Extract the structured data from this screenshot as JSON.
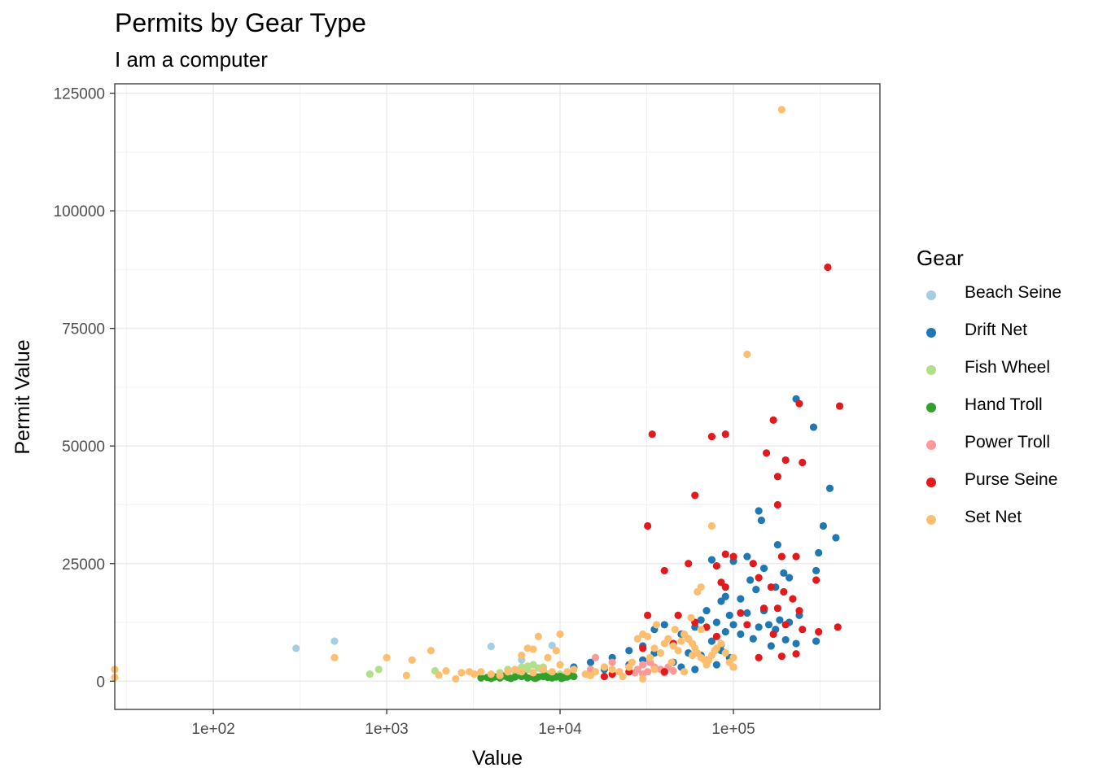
{
  "chart_data": {
    "type": "scatter",
    "title": "Permits by Gear Type",
    "subtitle": "I am a computer",
    "xlabel": "Value",
    "ylabel": "Permit Value",
    "x_scale": "log10",
    "xlim": [
      27,
      700000
    ],
    "ylim": [
      -6000,
      127000
    ],
    "x_ticks": [
      100,
      1000,
      10000,
      100000
    ],
    "x_tick_labels": [
      "1e+02",
      "1e+03",
      "1e+04",
      "1e+05"
    ],
    "y_ticks": [
      0,
      25000,
      50000,
      75000,
      100000,
      125000
    ],
    "y_tick_labels": [
      "0",
      "25000",
      "50000",
      "75000",
      "100000",
      "125000"
    ],
    "grid": true,
    "legend_title": "Gear",
    "legend_position": "right",
    "series": [
      {
        "name": "Beach Seine",
        "color": "#a6cee3",
        "points": [
          [
            300,
            7000
          ],
          [
            500,
            8500
          ],
          [
            4000,
            7400
          ],
          [
            9000,
            7600
          ],
          [
            6000,
            4500
          ],
          [
            7000,
            3500
          ]
        ]
      },
      {
        "name": "Drift Net",
        "color": "#1f78b4",
        "points": [
          [
            230000,
            60000
          ],
          [
            290000,
            54000
          ],
          [
            360000,
            41000
          ],
          [
            330000,
            33000
          ],
          [
            390000,
            30500
          ],
          [
            180000,
            29000
          ],
          [
            310000,
            27300
          ],
          [
            120000,
            26500
          ],
          [
            140000,
            36200
          ],
          [
            145000,
            34200
          ],
          [
            75000,
            25800
          ],
          [
            100000,
            25500
          ],
          [
            150000,
            24000
          ],
          [
            195000,
            23000
          ],
          [
            210000,
            22000
          ],
          [
            300000,
            23500
          ],
          [
            125000,
            21500
          ],
          [
            175000,
            20000
          ],
          [
            135000,
            19500
          ],
          [
            90000,
            18000
          ],
          [
            110000,
            17500
          ],
          [
            85000,
            17000
          ],
          [
            70000,
            15000
          ],
          [
            95000,
            14000
          ],
          [
            120000,
            14500
          ],
          [
            150000,
            15000
          ],
          [
            185000,
            13000
          ],
          [
            160000,
            12000
          ],
          [
            210000,
            12500
          ],
          [
            240000,
            14000
          ],
          [
            65000,
            13000
          ],
          [
            80000,
            12500
          ],
          [
            100000,
            12000
          ],
          [
            140000,
            11500
          ],
          [
            175000,
            11000
          ],
          [
            60000,
            11500
          ],
          [
            90000,
            10500
          ],
          [
            110000,
            10000
          ],
          [
            130000,
            9000
          ],
          [
            200000,
            8800
          ],
          [
            300000,
            8500
          ],
          [
            230000,
            8000
          ],
          [
            165000,
            7500
          ],
          [
            40000,
            12000
          ],
          [
            35000,
            11000
          ],
          [
            50000,
            10000
          ],
          [
            55000,
            9000
          ],
          [
            75000,
            8500
          ],
          [
            85000,
            7800
          ],
          [
            45000,
            8000
          ],
          [
            30000,
            7500
          ],
          [
            25000,
            6500
          ],
          [
            35000,
            6000
          ],
          [
            55000,
            6000
          ],
          [
            65000,
            5500
          ],
          [
            20000,
            5000
          ],
          [
            30000,
            4500
          ],
          [
            45000,
            4000
          ],
          [
            15000,
            4000
          ],
          [
            25000,
            3500
          ],
          [
            50000,
            3000
          ],
          [
            60000,
            2500
          ],
          [
            70000,
            4500
          ],
          [
            12000,
            3000
          ],
          [
            18000,
            2500
          ],
          [
            40000,
            2000
          ],
          [
            85000,
            6500
          ],
          [
            95000,
            5000
          ],
          [
            80000,
            3500
          ]
        ]
      },
      {
        "name": "Fish Wheel",
        "color": "#b2df8a",
        "points": [
          [
            800,
            1500
          ],
          [
            900,
            2500
          ],
          [
            1900,
            2200
          ],
          [
            4000,
            1300
          ],
          [
            4500,
            1800
          ],
          [
            5000,
            2500
          ],
          [
            5500,
            2000
          ],
          [
            6000,
            3000
          ],
          [
            6500,
            2500
          ],
          [
            7000,
            3500
          ],
          [
            7500,
            2800
          ],
          [
            8000,
            2000
          ],
          [
            8500,
            1500
          ],
          [
            9000,
            1000
          ],
          [
            6000,
            1200
          ],
          [
            5000,
            1000
          ],
          [
            10000,
            1500
          ],
          [
            7000,
            1800
          ],
          [
            6500,
            3200
          ],
          [
            8000,
            3000
          ]
        ]
      },
      {
        "name": "Hand Troll",
        "color": "#33a02c",
        "points": [
          [
            3500,
            700
          ],
          [
            3800,
            800
          ],
          [
            4000,
            600
          ],
          [
            4200,
            900
          ],
          [
            4500,
            700
          ],
          [
            5000,
            800
          ],
          [
            5500,
            900
          ],
          [
            6000,
            1000
          ],
          [
            6500,
            700
          ],
          [
            7000,
            800
          ],
          [
            7500,
            900
          ],
          [
            8000,
            1000
          ],
          [
            8500,
            800
          ],
          [
            9000,
            700
          ],
          [
            9500,
            900
          ],
          [
            10000,
            1000
          ],
          [
            10500,
            800
          ],
          [
            11000,
            900
          ],
          [
            12000,
            1000
          ],
          [
            4800,
            1100
          ],
          [
            5200,
            600
          ],
          [
            6200,
            1200
          ],
          [
            7200,
            600
          ],
          [
            8200,
            1100
          ],
          [
            9200,
            1200
          ],
          [
            10200,
            600
          ],
          [
            11500,
            1200
          ]
        ]
      },
      {
        "name": "Power Troll",
        "color": "#fb9a99",
        "points": [
          [
            15000,
            2500
          ],
          [
            16000,
            5000
          ],
          [
            18000,
            3000
          ],
          [
            20000,
            4000
          ],
          [
            22000,
            2000
          ],
          [
            25000,
            3000
          ],
          [
            28000,
            2500
          ],
          [
            30000,
            3500
          ],
          [
            32000,
            2000
          ],
          [
            35000,
            3000
          ],
          [
            38000,
            2500
          ],
          [
            40000,
            1800
          ],
          [
            42000,
            3000
          ],
          [
            45000,
            2200
          ],
          [
            30000,
            1500
          ],
          [
            27000,
            1800
          ],
          [
            33000,
            4000
          ]
        ]
      },
      {
        "name": "Purse Seine",
        "color": "#e31a1c",
        "points": [
          [
            350000,
            88000
          ],
          [
            410000,
            58500
          ],
          [
            240000,
            59000
          ],
          [
            34000,
            52500
          ],
          [
            75000,
            52000
          ],
          [
            90000,
            52500
          ],
          [
            170000,
            55500
          ],
          [
            155000,
            48500
          ],
          [
            200000,
            47000
          ],
          [
            250000,
            46500
          ],
          [
            180000,
            43500
          ],
          [
            60000,
            39500
          ],
          [
            180000,
            37500
          ],
          [
            32000,
            33000
          ],
          [
            90000,
            27000
          ],
          [
            100000,
            26500
          ],
          [
            55000,
            25000
          ],
          [
            80000,
            24500
          ],
          [
            40000,
            23500
          ],
          [
            130000,
            25000
          ],
          [
            190000,
            26500
          ],
          [
            230000,
            26500
          ],
          [
            140000,
            22000
          ],
          [
            165000,
            20000
          ],
          [
            195000,
            19000
          ],
          [
            220000,
            17500
          ],
          [
            300000,
            21500
          ],
          [
            85000,
            21000
          ],
          [
            90000,
            20000
          ],
          [
            110000,
            14500
          ],
          [
            120000,
            12000
          ],
          [
            150000,
            15500
          ],
          [
            180000,
            15500
          ],
          [
            240000,
            15000
          ],
          [
            200000,
            12000
          ],
          [
            170000,
            10000
          ],
          [
            250000,
            11000
          ],
          [
            310000,
            10500
          ],
          [
            400000,
            11500
          ],
          [
            140000,
            5000
          ],
          [
            190000,
            5300
          ],
          [
            230000,
            5800
          ],
          [
            32000,
            14000
          ],
          [
            48000,
            14000
          ],
          [
            60000,
            12500
          ],
          [
            70000,
            11500
          ],
          [
            80000,
            9500
          ],
          [
            45000,
            8000
          ],
          [
            30000,
            7000
          ],
          [
            100000,
            3000
          ],
          [
            40000,
            2000
          ],
          [
            20000,
            1500
          ],
          [
            18000,
            1000
          ],
          [
            25000,
            2000
          ]
        ]
      },
      {
        "name": "Set Net",
        "color": "#fdbf6f",
        "points": [
          [
            190000,
            121500
          ],
          [
            120000,
            69500
          ],
          [
            75000,
            33000
          ],
          [
            65000,
            20000
          ],
          [
            62000,
            19000
          ],
          [
            27,
            2500
          ],
          [
            27,
            800
          ],
          [
            500,
            5000
          ],
          [
            1000,
            5000
          ],
          [
            1400,
            4500
          ],
          [
            1300,
            1200
          ],
          [
            1800,
            6500
          ],
          [
            2000,
            1300
          ],
          [
            2200,
            2200
          ],
          [
            2500,
            500
          ],
          [
            2700,
            1800
          ],
          [
            3000,
            2000
          ],
          [
            3200,
            1500
          ],
          [
            3500,
            2000
          ],
          [
            4000,
            1500
          ],
          [
            4500,
            1200
          ],
          [
            5000,
            2000
          ],
          [
            5500,
            2500
          ],
          [
            6000,
            2000
          ],
          [
            6500,
            7000
          ],
          [
            7000,
            1800
          ],
          [
            7500,
            9500
          ],
          [
            8000,
            2500
          ],
          [
            9000,
            2000
          ],
          [
            10000,
            10000
          ],
          [
            10000,
            3500
          ],
          [
            11000,
            2000
          ],
          [
            12000,
            2500
          ],
          [
            14000,
            1500
          ],
          [
            15000,
            1200
          ],
          [
            16000,
            2000
          ],
          [
            18000,
            3000
          ],
          [
            20000,
            2500
          ],
          [
            22000,
            2000
          ],
          [
            25000,
            3000
          ],
          [
            28000,
            9000
          ],
          [
            30000,
            10000
          ],
          [
            32000,
            9500
          ],
          [
            35000,
            7000
          ],
          [
            38000,
            6000
          ],
          [
            40000,
            8000
          ],
          [
            42000,
            9000
          ],
          [
            45000,
            7500
          ],
          [
            48000,
            6500
          ],
          [
            50000,
            8500
          ],
          [
            52000,
            10000
          ],
          [
            55000,
            9000
          ],
          [
            58000,
            8000
          ],
          [
            60000,
            7000
          ],
          [
            62000,
            6000
          ],
          [
            65000,
            5000
          ],
          [
            68000,
            4500
          ],
          [
            70000,
            3500
          ],
          [
            72000,
            4500
          ],
          [
            75000,
            5500
          ],
          [
            78000,
            6500
          ],
          [
            80000,
            7000
          ],
          [
            85000,
            8000
          ],
          [
            90000,
            6000
          ],
          [
            95000,
            4000
          ],
          [
            100000,
            3000
          ],
          [
            100000,
            5000
          ],
          [
            58000,
            5500
          ],
          [
            44000,
            4000
          ],
          [
            35000,
            2500
          ],
          [
            30000,
            500
          ],
          [
            52000,
            2000
          ],
          [
            23000,
            1000
          ],
          [
            26000,
            4000
          ],
          [
            33000,
            5000
          ],
          [
            46000,
            11000
          ],
          [
            36000,
            12000
          ],
          [
            57000,
            13500
          ],
          [
            65000,
            11000
          ],
          [
            9500,
            6500
          ],
          [
            8500,
            5000
          ],
          [
            7000,
            6800
          ],
          [
            6000,
            5500
          ]
        ]
      }
    ]
  }
}
